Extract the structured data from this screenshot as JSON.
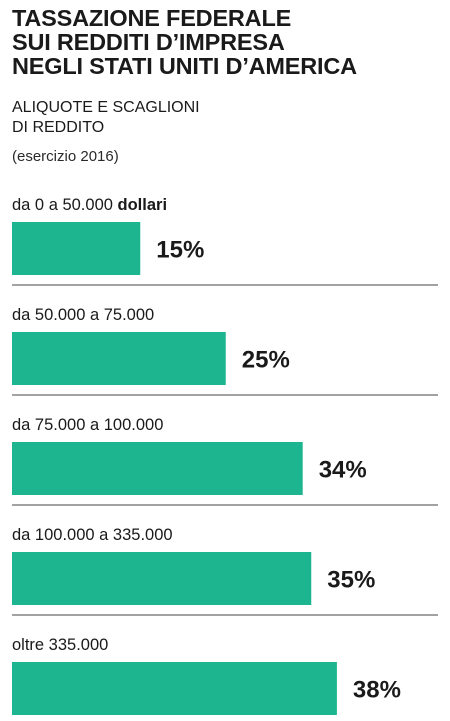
{
  "header": {
    "title_lines": [
      "TASSAZIONE FEDERALE",
      "SUI REDDITI D’IMPRESA",
      "NEGLI STATI UNITI D’AMERICA"
    ],
    "subtitle_lines": [
      "ALIQUOTE E SCAGLIONI",
      "DI REDDITO"
    ],
    "note": "(esercizio 2016)"
  },
  "colors": {
    "bar": "#1db58f",
    "text": "#1a1a1a",
    "divider": "#6b6b6b"
  },
  "chart_data": {
    "type": "bar",
    "orientation": "horizontal",
    "unit": "%",
    "xlim": [
      0,
      38
    ],
    "grid": false,
    "title": "TASSAZIONE FEDERALE SUI REDDITI D’IMPRESA NEGLI STATI UNITI D’AMERICA",
    "subtitle": "ALIQUOTE E SCAGLIONI DI REDDITO",
    "categories": [
      "da 0 a 50.000 dollari",
      "da 50.000 a 75.000",
      "da 75.000 a 100.000",
      "da 100.000 a 335.000",
      "oltre 335.000"
    ],
    "category_prefix": "da 0 a 50.000",
    "category_suffix": "dollari",
    "values": [
      15,
      25,
      34,
      35,
      38
    ],
    "value_labels": [
      "15%",
      "25%",
      "34%",
      "35%",
      "38%"
    ]
  }
}
